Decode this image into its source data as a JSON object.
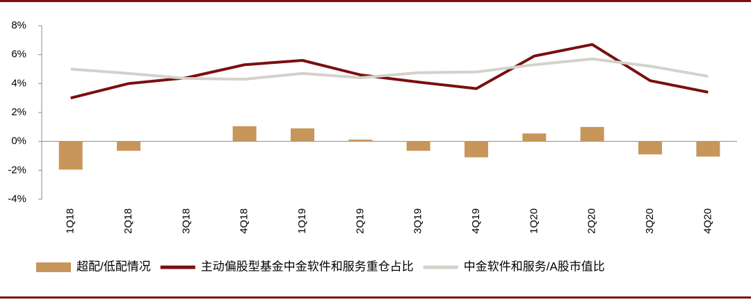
{
  "chart_data": {
    "type": "bar",
    "categories": [
      "1Q18",
      "2Q18",
      "3Q18",
      "4Q18",
      "1Q19",
      "2Q19",
      "3Q19",
      "4Q19",
      "1Q20",
      "2Q20",
      "3Q20",
      "4Q20"
    ],
    "series": [
      {
        "name": "超配/低配情况",
        "type": "bar",
        "color": "#c8965a",
        "values": [
          -1.95,
          -0.65,
          0,
          1.05,
          0.9,
          0.12,
          -0.65,
          -1.1,
          0.55,
          1.0,
          -0.9,
          -1.05
        ]
      },
      {
        "name": "主动偏股型基金中金软件和服务重仓占比",
        "type": "line",
        "color": "#7a0f0f",
        "values": [
          3.0,
          4.0,
          4.4,
          5.3,
          5.6,
          4.6,
          4.1,
          3.65,
          5.9,
          6.7,
          4.2,
          3.4
        ]
      },
      {
        "name": "中金软件和服务/A股市值比",
        "type": "line",
        "color": "#d2d2ca",
        "values": [
          5.0,
          4.7,
          4.35,
          4.3,
          4.7,
          4.4,
          4.75,
          4.8,
          5.3,
          5.7,
          5.2,
          4.5
        ]
      }
    ],
    "ylim": [
      -4,
      8
    ],
    "yticks": [
      {
        "value": -4,
        "label": "-4%"
      },
      {
        "value": -2,
        "label": "-2%"
      },
      {
        "value": 0,
        "label": "0%"
      },
      {
        "value": 2,
        "label": "2%"
      },
      {
        "value": 4,
        "label": "4%"
      },
      {
        "value": 6,
        "label": "6%"
      },
      {
        "value": 8,
        "label": "8%"
      }
    ],
    "grid": false,
    "legend": "bottom"
  }
}
